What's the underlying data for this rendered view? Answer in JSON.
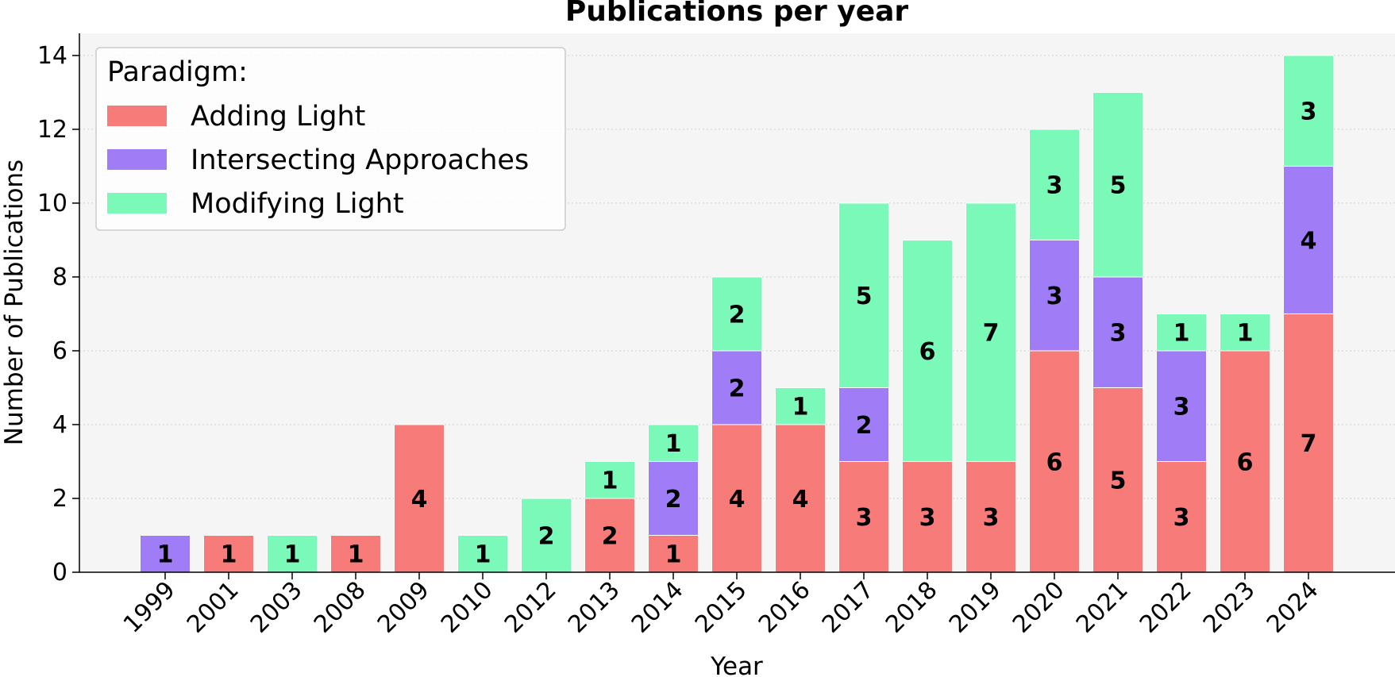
{
  "chart_data": {
    "type": "bar",
    "stacked": true,
    "title": "Publications per year",
    "xlabel": "Year",
    "ylabel": "Number of Publications",
    "ylim": [
      0,
      14.6
    ],
    "yticks": [
      "0",
      "2",
      "4",
      "6",
      "8",
      "10",
      "12",
      "14"
    ],
    "grid": "horizontal dotted",
    "legend_title": "Paradigm:",
    "legend_position": "top-left",
    "categories": [
      "1999",
      "2001",
      "2003",
      "2008",
      "2009",
      "2010",
      "2012",
      "2013",
      "2014",
      "2015",
      "2016",
      "2017",
      "2018",
      "2019",
      "2020",
      "2021",
      "2022",
      "2023",
      "2024"
    ],
    "series": [
      {
        "name": "Adding Light",
        "color": "#f77b79",
        "values": [
          0,
          1,
          0,
          1,
          4,
          0,
          0,
          2,
          1,
          4,
          4,
          3,
          3,
          3,
          6,
          5,
          3,
          6,
          7
        ]
      },
      {
        "name": "Intersecting Approaches",
        "color": "#a07cf6",
        "values": [
          1,
          0,
          0,
          0,
          0,
          0,
          0,
          0,
          2,
          2,
          0,
          2,
          0,
          0,
          3,
          3,
          3,
          0,
          4
        ]
      },
      {
        "name": "Modifying Light",
        "color": "#7bf9b8",
        "values": [
          0,
          0,
          1,
          0,
          0,
          1,
          2,
          1,
          1,
          2,
          1,
          5,
          6,
          7,
          3,
          5,
          1,
          1,
          3
        ]
      }
    ]
  }
}
